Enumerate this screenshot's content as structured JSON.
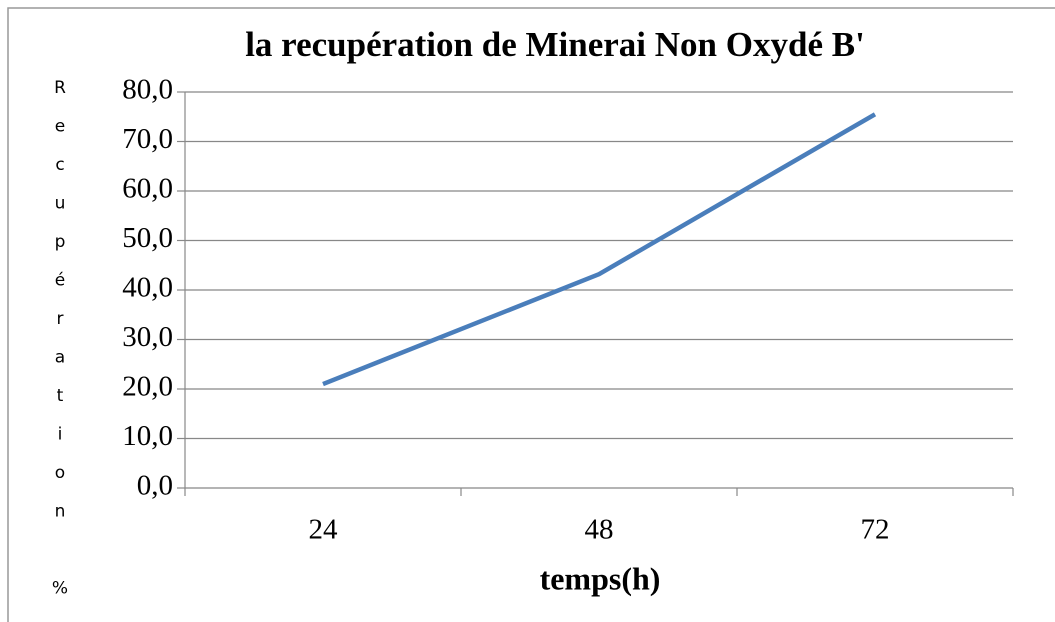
{
  "chart_data": {
    "type": "line",
    "title": "la recupération de Minerai Non Oxydé B'",
    "x_label": "temps(h)",
    "y_label": "Recupération %",
    "categories": [
      "24",
      "48",
      "72"
    ],
    "series": [
      {
        "name": "Recupération",
        "color": "#4a7ebb",
        "values": [
          21.0,
          43.2,
          75.5
        ]
      }
    ],
    "ylim": [
      0,
      80
    ],
    "yticks": [
      {
        "value": 0,
        "label": "0,0"
      },
      {
        "value": 10,
        "label": "10,0"
      },
      {
        "value": 20,
        "label": "20,0"
      },
      {
        "value": 30,
        "label": "30,0"
      },
      {
        "value": 40,
        "label": "40,0"
      },
      {
        "value": 50,
        "label": "50,0"
      },
      {
        "value": 60,
        "label": "60,0"
      },
      {
        "value": 70,
        "label": "70,0"
      },
      {
        "value": 80,
        "label": "80,0"
      }
    ],
    "grid": true
  }
}
